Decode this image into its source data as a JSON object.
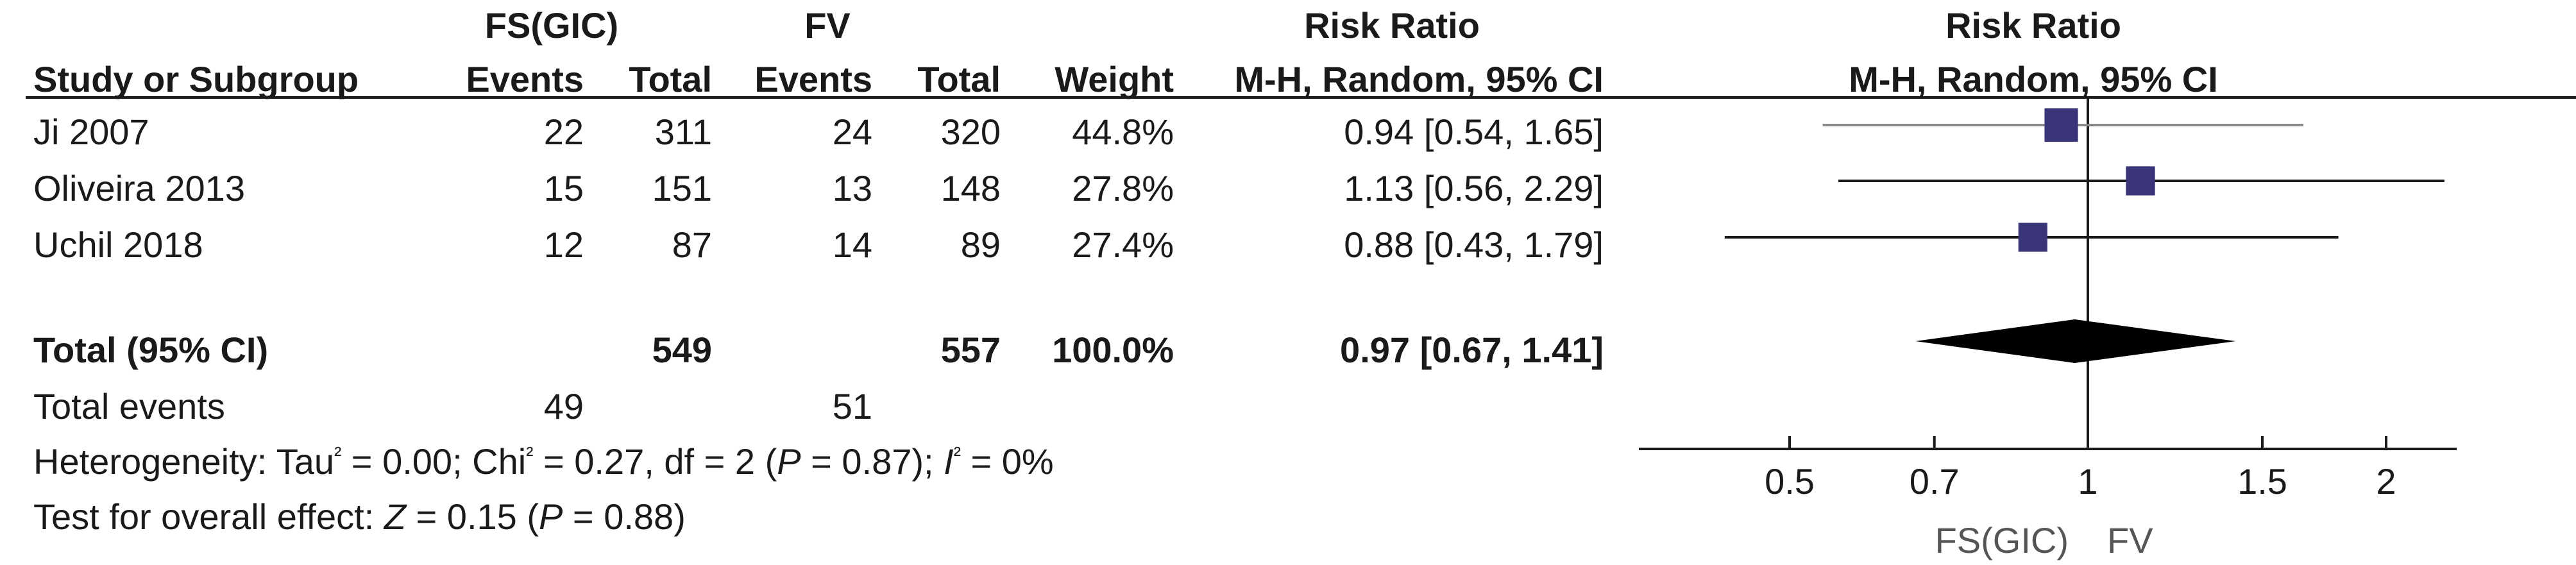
{
  "headers": {
    "group1": "FS(GIC)",
    "group2": "FV",
    "effect": "Risk Ratio",
    "plot_title": "Risk Ratio",
    "study": "Study or Subgroup",
    "events": "Events",
    "total": "Total",
    "weight": "Weight",
    "method": "M-H, Random, 95% CI",
    "plot_method": "M-H, Random, 95% CI"
  },
  "studies": [
    {
      "name": "Ji 2007",
      "e1": "22",
      "n1": "311",
      "e2": "24",
      "n2": "320",
      "weight": "44.8%",
      "ci_text": "0.94 [0.54, 1.65]"
    },
    {
      "name": "Oliveira 2013",
      "e1": "15",
      "n1": "151",
      "e2": "13",
      "n2": "148",
      "weight": "27.8%",
      "ci_text": "1.13 [0.56, 2.29]"
    },
    {
      "name": "Uchil 2018",
      "e1": "12",
      "n1": "87",
      "e2": "14",
      "n2": "89",
      "weight": "27.4%",
      "ci_text": "0.88 [0.43, 1.79]"
    }
  ],
  "total": {
    "label": "Total (95% CI)",
    "n1": "549",
    "n2": "557",
    "weight": "100.0%",
    "ci_text": "0.97 [0.67, 1.41]"
  },
  "total_events": {
    "label": "Total events",
    "e1": "49",
    "e2": "51"
  },
  "heterogeneity": {
    "prefix": "Heterogeneity: Tau",
    "tau_val": " = 0.00; Chi",
    "chi_val": " = 0.27, df = 2 (",
    "p_label": "P",
    "p_val": " = 0.87); ",
    "i_label": "I",
    "i_val": " = 0%",
    "sup": "²"
  },
  "overall": {
    "prefix": "Test for overall effect: ",
    "z_label": "Z",
    "z_val": " = 0.15  (",
    "p_label": "P",
    "p_val": " = 0.88)"
  },
  "axis_labels": {
    "left": "FS(GIC)",
    "right": "FV"
  },
  "chart_data": {
    "type": "forest",
    "scale": "log",
    "xlim": [
      0.35,
      2.8
    ],
    "ticks": [
      0.5,
      0.7,
      1,
      1.5,
      2
    ],
    "tick_labels": [
      "0.5",
      "0.7",
      "1",
      "1.5",
      "2"
    ],
    "reference_line": 1,
    "studies": [
      {
        "name": "Ji 2007",
        "rr": 0.94,
        "lo": 0.54,
        "hi": 1.65,
        "weight": 44.8
      },
      {
        "name": "Oliveira 2013",
        "rr": 1.13,
        "lo": 0.56,
        "hi": 2.29,
        "weight": 27.8
      },
      {
        "name": "Uchil 2018",
        "rr": 0.88,
        "lo": 0.43,
        "hi": 1.79,
        "weight": 27.4
      }
    ],
    "pooled": {
      "rr": 0.97,
      "lo": 0.67,
      "hi": 1.41
    },
    "colors": {
      "marker": "#3a3478",
      "ci_line_first": "#8a8a8a",
      "ci_line": "#1a1a1a",
      "diamond": "#000000"
    }
  }
}
